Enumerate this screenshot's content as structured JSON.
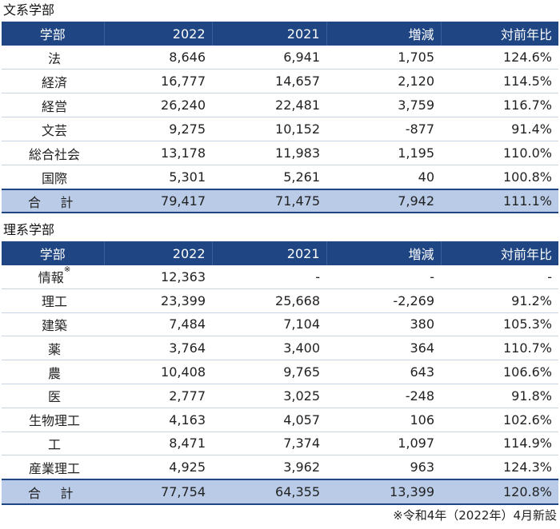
{
  "section_humanities": {
    "title": "文系学部",
    "headers": [
      "学部",
      "2022",
      "2021",
      "増減",
      "対前年比"
    ],
    "rows": [
      [
        "法",
        "8,646",
        "6,941",
        "1,705",
        "124.6%"
      ],
      [
        "経済",
        "16,777",
        "14,657",
        "2,120",
        "114.5%"
      ],
      [
        "経営",
        "26,240",
        "22,481",
        "3,759",
        "116.7%"
      ],
      [
        "文芸",
        "9,275",
        "10,152",
        "-877",
        "91.4%"
      ],
      [
        "総合社会",
        "13,178",
        "11,983",
        "1,195",
        "110.0%"
      ],
      [
        "国際",
        "5,301",
        "5,261",
        "40",
        "100.8%"
      ]
    ],
    "total": [
      "合 計",
      "79,417",
      "71,475",
      "7,942",
      "111.1%"
    ]
  },
  "section_sciences": {
    "title": "理系学部",
    "headers": [
      "学部",
      "2022",
      "2021",
      "増減",
      "対前年比"
    ],
    "rows": [
      [
        "情報",
        "12,363",
        "-",
        "-",
        "-"
      ],
      [
        "理工",
        "23,399",
        "25,668",
        "-2,269",
        "91.2%"
      ],
      [
        "建築",
        "7,484",
        "7,104",
        "380",
        "105.3%"
      ],
      [
        "薬",
        "3,764",
        "3,400",
        "364",
        "110.7%"
      ],
      [
        "農",
        "10,408",
        "9,765",
        "643",
        "106.6%"
      ],
      [
        "医",
        "2,777",
        "3,025",
        "-248",
        "91.8%"
      ],
      [
        "生物理工",
        "4,163",
        "4,057",
        "106",
        "102.6%"
      ],
      [
        "工",
        "8,471",
        "7,374",
        "1,097",
        "114.9%"
      ],
      [
        "産業理工",
        "4,925",
        "3,962",
        "963",
        "124.3%"
      ]
    ],
    "total": [
      "合 計",
      "77,754",
      "64,355",
      "13,399",
      "120.8%"
    ],
    "note_mark": "※"
  },
  "footnote": "※令和4年（2022年）4月新設",
  "colors": {
    "header_bg": "#1f4683",
    "total_bg": "#b9cbe6",
    "row_line": "#c9d3e3"
  }
}
